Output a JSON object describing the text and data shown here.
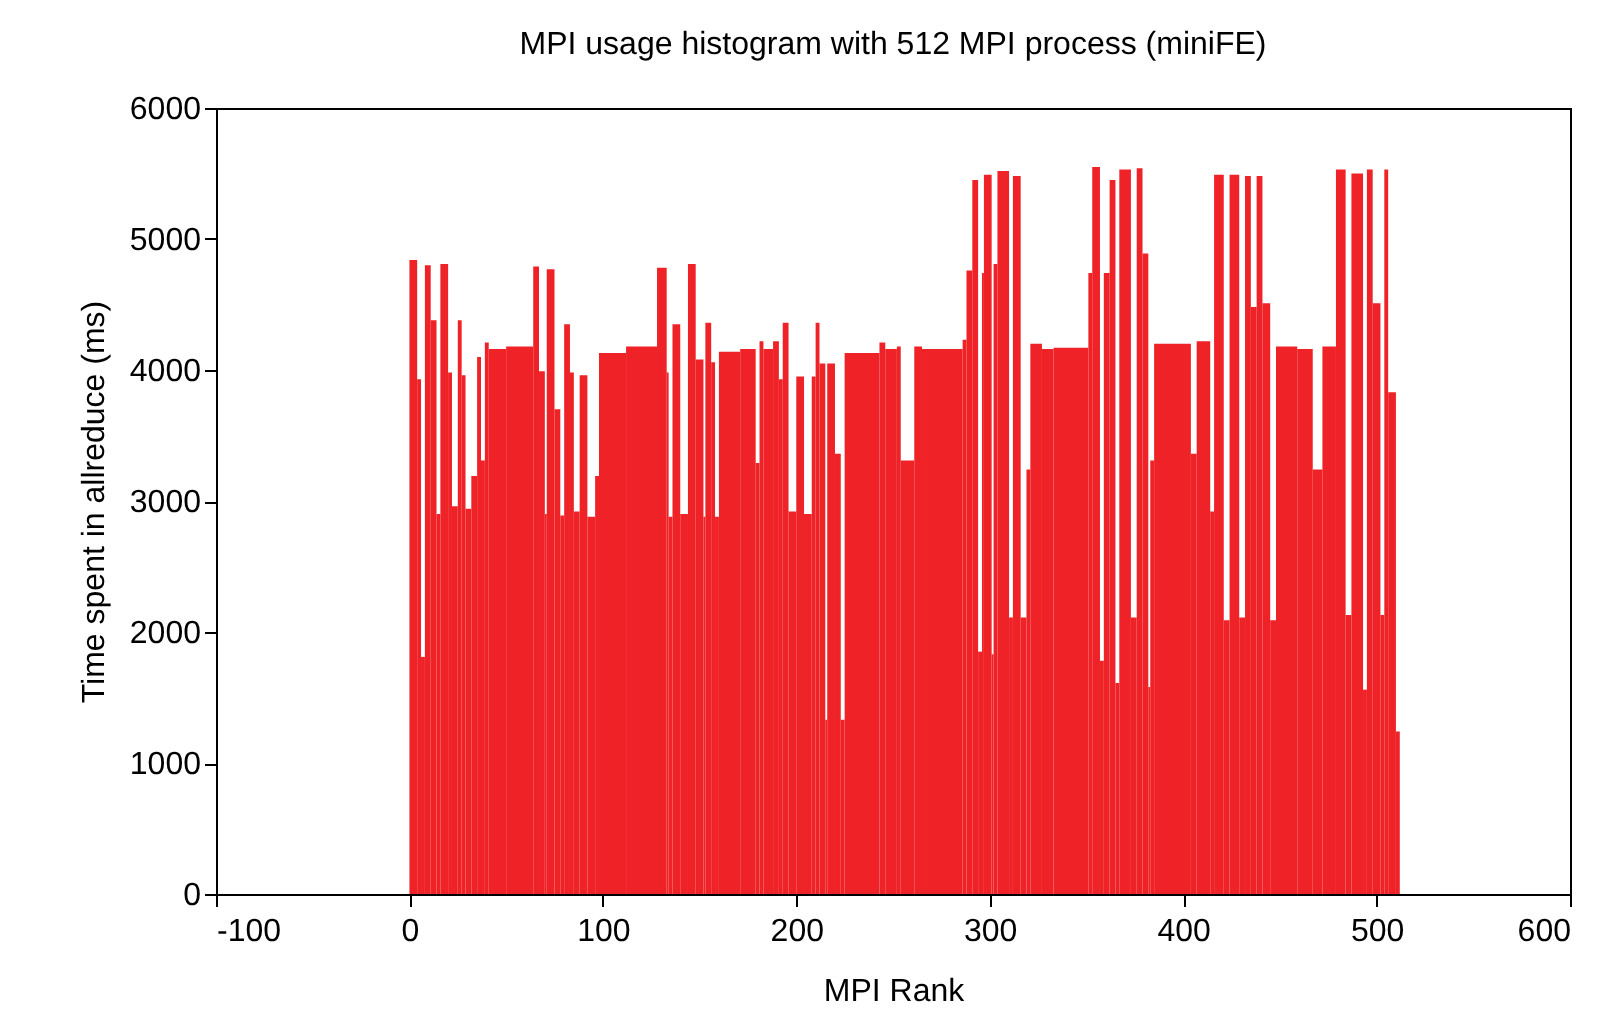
{
  "chart_data": {
    "type": "histogram",
    "title": "MPI usage histogram with 512 MPI process (miniFE)",
    "xlabel": "MPI Rank",
    "ylabel": "Time spent in allreduce (ms)",
    "color": "#ee2227",
    "bins": [
      0,
      4,
      6,
      8,
      11,
      14,
      16,
      20,
      22,
      25,
      27,
      29,
      32,
      35,
      37,
      39,
      41,
      50,
      64,
      67,
      70,
      71,
      75,
      78,
      80,
      83,
      85,
      88,
      92,
      96,
      98,
      112,
      128,
      133,
      134,
      136,
      140,
      144,
      148,
      152,
      153,
      156,
      158,
      160,
      171,
      179,
      181,
      183,
      188,
      191,
      193,
      196,
      200,
      204,
      208,
      210,
      212,
      215,
      216,
      220,
      223,
      225,
      243,
      246,
      252,
      254,
      261,
      265,
      286,
      288,
      291,
      294,
      296,
      297,
      301,
      302,
      304,
      310,
      312,
      316,
      319,
      321,
      327,
      333,
      351,
      353,
      357,
      359,
      362,
      365,
      367,
      373,
      376,
      379,
      382,
      383,
      385,
      404,
      407,
      414,
      416,
      421,
      424,
      429,
      432,
      435,
      438,
      441,
      445,
      448,
      459,
      467,
      472,
      479,
      484,
      487,
      493,
      495,
      498,
      502,
      504,
      506,
      510,
      512
    ],
    "values": [
      4840,
      3930,
      1810,
      4800,
      4380,
      2900,
      4810,
      3980,
      2960,
      4380,
      3960,
      2940,
      3190,
      4100,
      3310,
      4210,
      4160,
      4180,
      4790,
      3990,
      2900,
      4770,
      3700,
      2890,
      4350,
      3980,
      2920,
      3960,
      2880,
      3190,
      4130,
      4180,
      4780,
      3980,
      2880,
      4350,
      2900,
      4810,
      4080,
      2880,
      4360,
      4060,
      2880,
      4140,
      4160,
      3290,
      4220,
      4160,
      4220,
      3930,
      4360,
      2920,
      3950,
      2900,
      3950,
      4360,
      4050,
      1330,
      4050,
      3360,
      1330,
      4130,
      4210,
      4160,
      4180,
      3310,
      4180,
      4160,
      4230,
      4760,
      5450,
      1850,
      4740,
      5490,
      1830,
      4810,
      5520,
      2110,
      5480,
      2110,
      3240,
      4200,
      4160,
      4170,
      4740,
      5550,
      1780,
      4740,
      5450,
      1610,
      5530,
      2110,
      5540,
      4890,
      1580,
      3310,
      4200,
      3360,
      4220,
      2920,
      5490,
      2090,
      5490,
      2110,
      5480,
      4480,
      5480,
      4510,
      2090,
      4180,
      4160,
      3240,
      4180,
      5530,
      2130,
      5500,
      1560,
      5530,
      4510,
      2130,
      5530,
      3830,
      1240
    ],
    "xlim": [
      -100,
      600
    ],
    "xticks": [
      -100,
      0,
      100,
      200,
      300,
      400,
      500,
      600
    ],
    "ylim": [
      0,
      6000
    ],
    "yticks": [
      0,
      1000,
      2000,
      3000,
      4000,
      5000,
      6000
    ]
  }
}
